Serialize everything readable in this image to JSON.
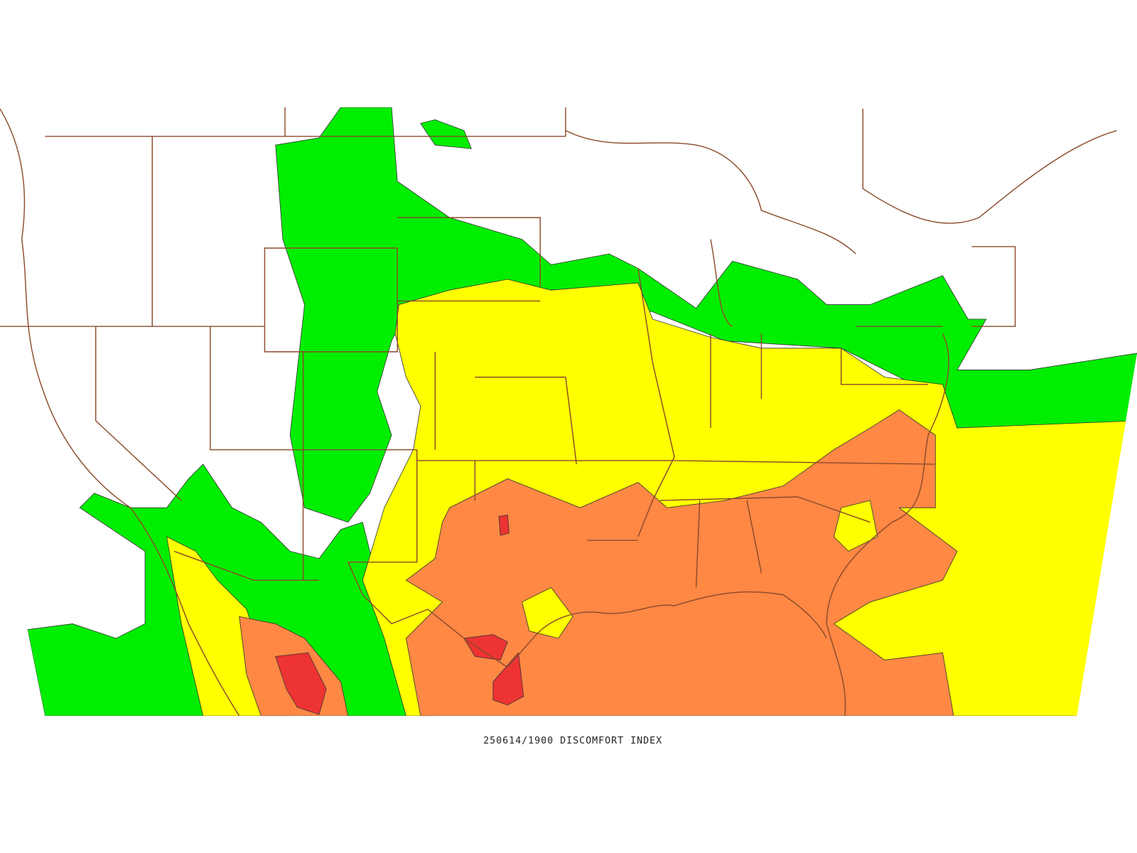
{
  "caption": "250614/1900 DISCOMFORT INDEX"
}
